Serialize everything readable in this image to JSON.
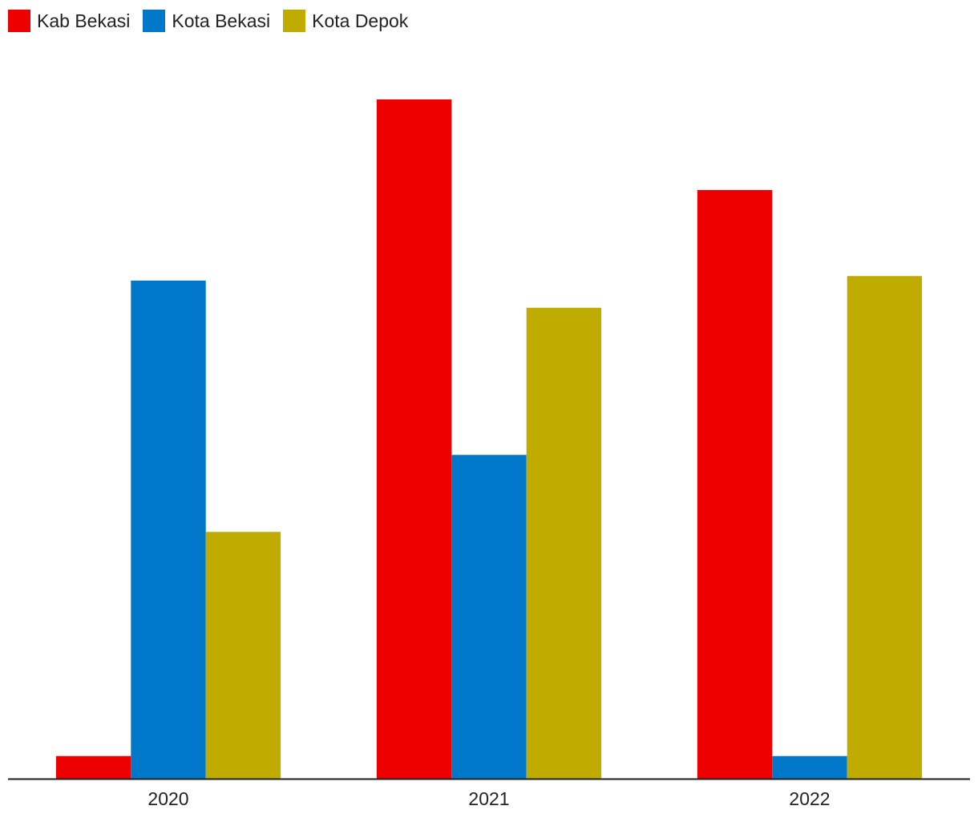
{
  "chart_data": {
    "type": "bar",
    "categories": [
      "2020",
      "2021",
      "2022"
    ],
    "series": [
      {
        "name": "Kab Bekasi",
        "color": "#ee0000",
        "values": [
          1,
          30,
          26
        ]
      },
      {
        "name": "Kota Bekasi",
        "color": "#0077c8",
        "values": [
          22,
          14.3,
          1
        ]
      },
      {
        "name": "Kota Depok",
        "color": "#c0ac00",
        "values": [
          10.9,
          20.8,
          22.2
        ]
      }
    ],
    "title": "",
    "xlabel": "",
    "ylabel": "",
    "ylim": [
      0,
      30
    ],
    "grid": false,
    "legend": "top-left"
  }
}
